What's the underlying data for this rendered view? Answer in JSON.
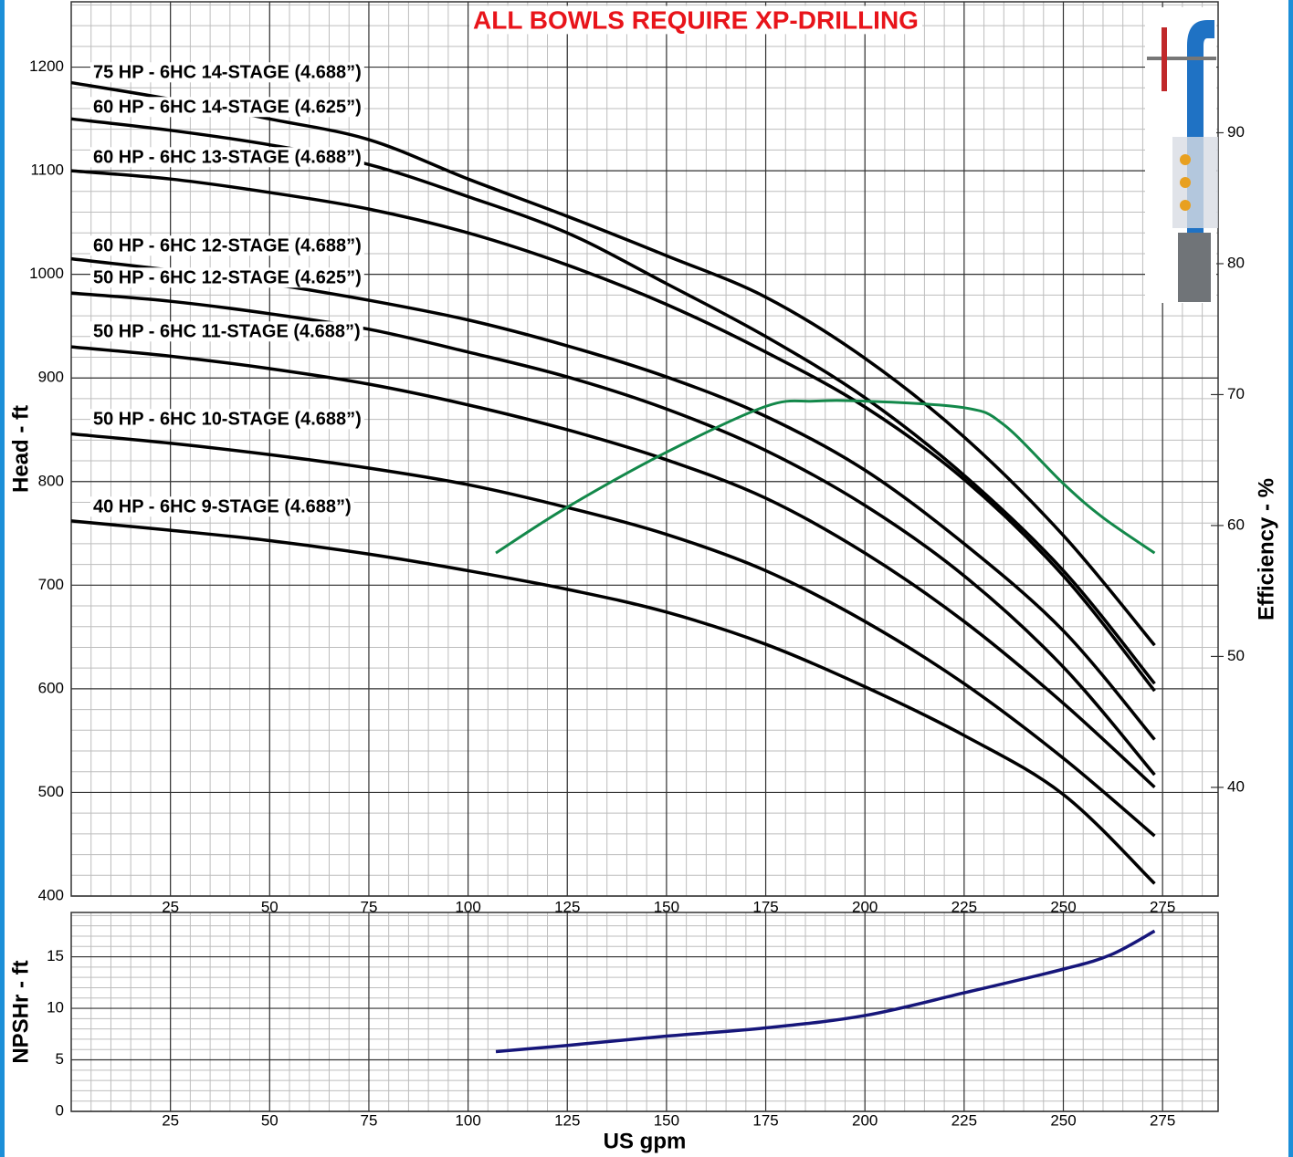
{
  "chart_data": [
    {
      "type": "line",
      "title": "ALL BOWLS REQUIRE XP-DRILLING",
      "y_label": "Head - ft",
      "y2_label": "Efficiency - %",
      "xlim": [
        0,
        289
      ],
      "ylim": [
        400,
        1263
      ],
      "y2lim": [
        31.7,
        100
      ],
      "xticks": [
        25,
        50,
        75,
        100,
        125,
        150,
        175,
        200,
        225,
        250,
        275
      ],
      "yticks": [
        400,
        500,
        600,
        700,
        800,
        900,
        1000,
        1100,
        1200
      ],
      "y2ticks": [
        40,
        50,
        60,
        70,
        80,
        90
      ],
      "grid": true,
      "series": [
        {
          "name": "75 HP - 6HC 14-STAGE (4.688”)",
          "color": "#000000",
          "x": [
            0,
            25,
            50,
            75,
            100,
            125,
            150,
            175,
            200,
            225,
            250,
            273
          ],
          "values": [
            1185,
            1169,
            1150,
            1130,
            1092,
            1056,
            1018,
            978,
            919,
            843,
            748,
            642
          ]
        },
        {
          "name": "60 HP - 6HC 14-STAGE (4.625”)",
          "color": "#000000",
          "x": [
            0,
            25,
            50,
            75,
            100,
            125,
            150,
            175,
            200,
            225,
            250,
            273
          ],
          "values": [
            1150,
            1139,
            1125,
            1106,
            1075,
            1040,
            991,
            940,
            881,
            806,
            714,
            605
          ]
        },
        {
          "name": "60 HP - 6HC 13-STAGE (4.688”)",
          "color": "#000000",
          "x": [
            0,
            25,
            50,
            75,
            100,
            125,
            150,
            175,
            200,
            225,
            250,
            273
          ],
          "values": [
            1100,
            1092,
            1079,
            1063,
            1040,
            1009,
            971,
            925,
            872,
            802,
            709,
            598
          ]
        },
        {
          "name": "60 HP - 6HC 12-STAGE (4.688”)",
          "color": "#000000",
          "x": [
            0,
            25,
            50,
            75,
            100,
            125,
            150,
            175,
            200,
            225,
            250,
            273
          ],
          "values": [
            1015,
            1004,
            991,
            975,
            956,
            931,
            901,
            863,
            811,
            740,
            656,
            551
          ]
        },
        {
          "name": "50 HP - 6HC 12-STAGE (4.625”)",
          "color": "#000000",
          "x": [
            0,
            25,
            50,
            75,
            100,
            125,
            150,
            175,
            200,
            225,
            250,
            273
          ],
          "values": [
            982,
            974,
            962,
            947,
            925,
            901,
            870,
            830,
            777,
            709,
            621,
            517
          ]
        },
        {
          "name": "50 HP - 6HC 11-STAGE (4.688”)",
          "color": "#000000",
          "x": [
            0,
            25,
            50,
            75,
            100,
            125,
            150,
            175,
            200,
            225,
            250,
            273
          ],
          "values": [
            930,
            921,
            909,
            894,
            874,
            850,
            821,
            784,
            731,
            665,
            586,
            505
          ]
        },
        {
          "name": "50 HP - 6HC 10-STAGE (4.688”)",
          "color": "#000000",
          "x": [
            0,
            25,
            50,
            75,
            100,
            125,
            150,
            175,
            200,
            225,
            250,
            273
          ],
          "values": [
            846,
            837,
            826,
            813,
            797,
            775,
            749,
            714,
            665,
            605,
            533,
            458
          ]
        },
        {
          "name": "40 HP - 6HC 9-STAGE (4.688”)",
          "color": "#000000",
          "x": [
            0,
            25,
            50,
            75,
            100,
            125,
            150,
            175,
            200,
            225,
            250,
            273
          ],
          "values": [
            762,
            753,
            743,
            730,
            714,
            696,
            674,
            643,
            602,
            555,
            498,
            412
          ]
        },
        {
          "color": "#13884a",
          "axis": "y2",
          "x": [
            107,
            125,
            150,
            175,
            187,
            200,
            225,
            235,
            250,
            260,
            273
          ],
          "values": [
            57.9,
            61.4,
            65.6,
            69.1,
            69.5,
            69.5,
            69.0,
            67.7,
            63.2,
            60.6,
            57.9
          ]
        }
      ]
    },
    {
      "type": "line",
      "x_label": "US gpm",
      "y_label": "NPSHr - ft",
      "xlim": [
        0,
        289
      ],
      "ylim": [
        0,
        19.3
      ],
      "xticks": [
        25,
        50,
        75,
        100,
        125,
        150,
        175,
        200,
        225,
        250,
        275
      ],
      "yticks": [
        0,
        5,
        10,
        15
      ],
      "grid": true,
      "series": [
        {
          "color": "#16167a",
          "x": [
            107,
            125,
            150,
            175,
            200,
            225,
            250,
            262,
            273
          ],
          "values": [
            5.8,
            6.4,
            7.3,
            8.1,
            9.3,
            11.5,
            13.8,
            15.2,
            17.5
          ]
        }
      ]
    }
  ]
}
